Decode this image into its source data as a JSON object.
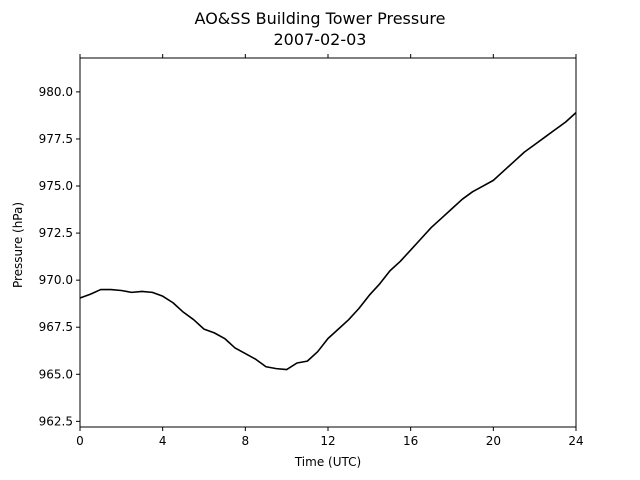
{
  "chart_data": {
    "type": "line",
    "title": "AO&SS Building Tower Pressure",
    "subtitle": "2007-02-03",
    "xlabel": "Time (UTC)",
    "ylabel": "Pressure (hPa)",
    "xlim": [
      0,
      24
    ],
    "ylim": [
      962.2,
      981.8
    ],
    "xticks": [
      0,
      4,
      8,
      12,
      16,
      20,
      24
    ],
    "xtick_labels": [
      "0",
      "4",
      "8",
      "12",
      "16",
      "20",
      "24"
    ],
    "yticks": [
      962.5,
      965.0,
      967.5,
      970.0,
      972.5,
      975.0,
      977.5,
      980.0
    ],
    "ytick_labels": [
      "962.5",
      "965.0",
      "967.5",
      "970.0",
      "972.5",
      "975.0",
      "977.5",
      "980.0"
    ],
    "grid": false,
    "line_color": "#000000",
    "series": [
      {
        "x": [
          0,
          0.5,
          1.0,
          1.5,
          2.0,
          2.5,
          3.0,
          3.5,
          4.0,
          4.5,
          5.0,
          5.5,
          6.0,
          6.5,
          7.0,
          7.5,
          8.0,
          8.5,
          9.0,
          9.5,
          10.0,
          10.5,
          11.0,
          11.5,
          12.0,
          12.5,
          13.0,
          13.5,
          14.0,
          14.5,
          15.0,
          15.5,
          16.0,
          16.5,
          17.0,
          17.5,
          18.0,
          18.5,
          19.0,
          19.5,
          20.0,
          20.5,
          21.0,
          21.5,
          22.0,
          22.5,
          23.0,
          23.5,
          24.0
        ],
        "y": [
          969.05,
          969.25,
          969.5,
          969.5,
          969.45,
          969.35,
          969.4,
          969.35,
          969.15,
          968.8,
          968.3,
          967.9,
          967.4,
          967.2,
          966.9,
          966.4,
          966.1,
          965.8,
          965.4,
          965.3,
          965.25,
          965.6,
          965.7,
          966.2,
          966.9,
          967.4,
          967.9,
          968.5,
          969.2,
          969.8,
          970.5,
          971.0,
          971.6,
          972.2,
          972.8,
          973.3,
          973.8,
          974.3,
          974.7,
          975.0,
          975.3,
          975.8,
          976.3,
          976.8,
          977.2,
          977.6,
          978.0,
          978.4,
          978.9
        ]
      }
    ]
  }
}
